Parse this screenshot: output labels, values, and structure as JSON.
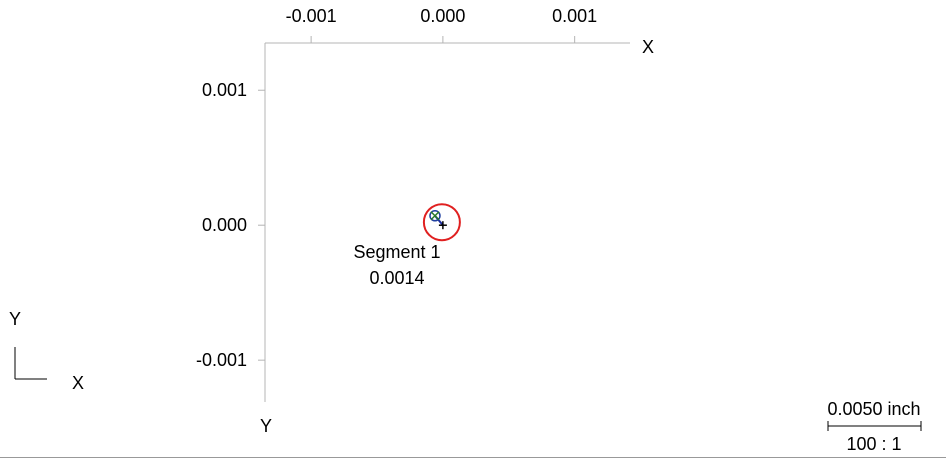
{
  "plot": {
    "top_axis_label": "X",
    "left_axis_label": "Y",
    "x_ticks": [
      {
        "label": "-0.001",
        "value": -0.001
      },
      {
        "label": "0.000",
        "value": 0.0
      },
      {
        "label": "0.001",
        "value": 0.001
      }
    ],
    "y_ticks": [
      {
        "label": "0.001",
        "value": 0.001
      },
      {
        "label": "0.000",
        "value": 0.0
      },
      {
        "label": "-0.001",
        "value": -0.001
      }
    ],
    "x_range": [
      -0.00135,
      0.00142
    ],
    "y_range": [
      -0.00131,
      0.00135
    ]
  },
  "segment": {
    "name": "Segment 1",
    "value": "0.0014",
    "nominal": {
      "x": 0.0,
      "y": 0.0
    },
    "actual": {
      "x": -6e-05,
      "y": 7e-05
    },
    "tolerance_diameter": 0.0005
  },
  "orientation": {
    "y_label": "Y",
    "x_label": "X"
  },
  "scale": {
    "length_label": "0.0050 inch",
    "ratio_label": "100 : 1"
  },
  "colors": {
    "axis": "#b4b4b4",
    "tolerance_circle": "#e02020",
    "point_x": "#2a7a2a",
    "point_circle": "#1f3f9f",
    "deviation_line": "#1f2fa0"
  }
}
